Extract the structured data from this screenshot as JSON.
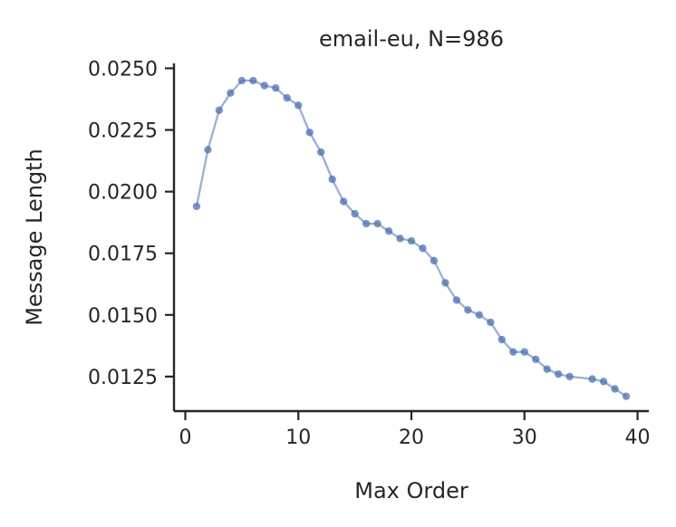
{
  "chart_data": {
    "type": "line",
    "title": "email-eu, N=986",
    "xlabel": "Max Order",
    "ylabel": "Message Length",
    "xlim": [
      -1,
      41
    ],
    "ylim": [
      0.0111,
      0.0252
    ],
    "x_ticks": [
      0,
      10,
      20,
      30,
      40
    ],
    "x_tick_labels": [
      "0",
      "10",
      "20",
      "30",
      "40"
    ],
    "y_ticks": [
      0.0125,
      0.015,
      0.0175,
      0.02,
      0.0225,
      0.025
    ],
    "y_tick_labels": [
      "0.0125",
      "0.0150",
      "0.0175",
      "0.0200",
      "0.0225",
      "0.0250"
    ],
    "grid": false,
    "colors": {
      "series": "#4c72b0",
      "axis": "#262626"
    },
    "series": [
      {
        "x": [
          1,
          2,
          3,
          4,
          5,
          6,
          7,
          8,
          9,
          10,
          11,
          12,
          13,
          14,
          15,
          16,
          17,
          18,
          19,
          20,
          21,
          22,
          23,
          24,
          25,
          26,
          27,
          28,
          29,
          30,
          31,
          32,
          33,
          34,
          36,
          37,
          38,
          39
        ],
        "values": [
          0.0194,
          0.0217,
          0.0233,
          0.024,
          0.0245,
          0.0245,
          0.0243,
          0.0242,
          0.0238,
          0.0235,
          0.0224,
          0.0216,
          0.0205,
          0.0196,
          0.0191,
          0.0187,
          0.0187,
          0.0184,
          0.0181,
          0.018,
          0.0177,
          0.0172,
          0.0163,
          0.0156,
          0.0152,
          0.015,
          0.0147,
          0.014,
          0.0135,
          0.0135,
          0.0132,
          0.0128,
          0.0126,
          0.0125,
          0.0124,
          0.0123,
          0.012,
          0.0117
        ]
      }
    ]
  }
}
